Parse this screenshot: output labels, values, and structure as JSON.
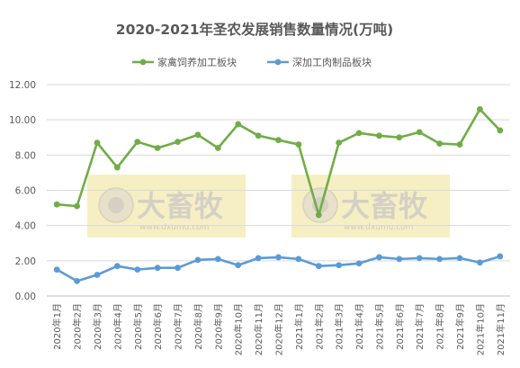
{
  "chart_data": {
    "type": "line",
    "title": "2020-2021年圣农发展销售数量情况(万吨)",
    "categories": [
      "2020年1月",
      "2020年2月",
      "2020年3月",
      "2020年4月",
      "2020年5月",
      "2020年6月",
      "2020年7月",
      "2020年8月",
      "2020年9月",
      "2020年10月",
      "2020年11月",
      "2020年12月",
      "2021年1月",
      "2021年2月",
      "2021年3月",
      "2021年4月",
      "2021年5月",
      "2021年6月",
      "2021年7月",
      "2021年8月",
      "2021年9月",
      "2021年10月",
      "2021年11月"
    ],
    "series": [
      {
        "name": "家禽饲养加工板块",
        "color": "#70AD47",
        "values": [
          5.2,
          5.1,
          8.7,
          7.3,
          8.75,
          8.4,
          8.75,
          9.15,
          8.4,
          9.75,
          9.1,
          8.85,
          8.6,
          4.6,
          8.7,
          9.25,
          9.1,
          9.0,
          9.3,
          8.65,
          8.6,
          10.6,
          9.4
        ]
      },
      {
        "name": "深加工肉制品板块",
        "color": "#5B9BD5",
        "values": [
          1.5,
          0.85,
          1.2,
          1.7,
          1.5,
          1.6,
          1.6,
          2.05,
          2.1,
          1.75,
          2.15,
          2.2,
          2.1,
          1.7,
          1.75,
          1.85,
          2.2,
          2.1,
          2.15,
          2.1,
          2.15,
          1.9,
          2.25
        ]
      }
    ],
    "yticks": [
      "0.00",
      "2.00",
      "4.00",
      "6.00",
      "8.00",
      "10.00",
      "12.00"
    ],
    "ylim": [
      0,
      12
    ],
    "grid": true,
    "legend_position": "top-center"
  },
  "watermark": {
    "text": "大畜牧",
    "subtext": "www.dxumu.com"
  }
}
